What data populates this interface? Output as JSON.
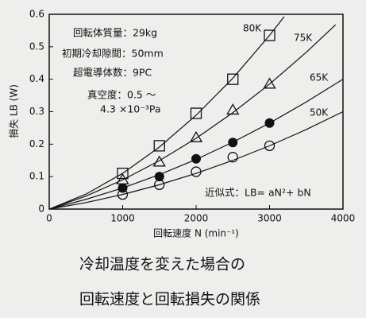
{
  "chart_data": {
    "type": "scatter",
    "x_label": "回転速度 N (min⁻¹)",
    "y_label": "損失 LB (W)",
    "xlim": [
      0,
      4000
    ],
    "xticks": [
      0,
      1000,
      2000,
      3000,
      4000
    ],
    "ylim": [
      0,
      0.6
    ],
    "yticks": [
      0,
      0.1,
      0.2,
      0.3,
      0.4,
      0.5,
      0.6
    ],
    "x": [
      1000,
      1500,
      2000,
      2500,
      3000
    ],
    "series": [
      {
        "name": "80K",
        "marker": "square",
        "color": "#111111",
        "values": [
          0.11,
          0.195,
          0.295,
          0.4,
          0.535
        ],
        "curve_x": [
          0,
          500,
          1000,
          1500,
          2000,
          2500,
          3000,
          3200
        ],
        "curve_values": [
          0,
          0.046,
          0.11,
          0.191,
          0.289,
          0.403,
          0.535,
          0.593
        ]
      },
      {
        "name": "75K",
        "marker": "triangle",
        "color": "#111111",
        "values": [
          0.09,
          0.145,
          0.22,
          0.305,
          0.385
        ],
        "curve_x": [
          0,
          500,
          1000,
          1500,
          2000,
          2500,
          3000,
          3500,
          3900
        ],
        "curve_values": [
          0,
          0.04,
          0.09,
          0.149,
          0.218,
          0.297,
          0.385,
          0.483,
          0.568
        ]
      },
      {
        "name": "65K",
        "marker": "filled-circle",
        "color": "#111111",
        "values": [
          0.065,
          0.1,
          0.155,
          0.205,
          0.265
        ],
        "curve_x": [
          0,
          500,
          1000,
          1500,
          2000,
          2500,
          3000,
          3500,
          4000
        ],
        "curve_values": [
          0,
          0.03,
          0.065,
          0.106,
          0.153,
          0.206,
          0.265,
          0.33,
          0.4
        ]
      },
      {
        "name": "50K",
        "marker": "circle",
        "color": "#111111",
        "values": [
          0.045,
          0.075,
          0.115,
          0.16,
          0.195
        ],
        "curve_x": [
          0,
          500,
          1000,
          1500,
          2000,
          2500,
          3000,
          3500,
          4000
        ],
        "curve_values": [
          0,
          0.02,
          0.045,
          0.075,
          0.11,
          0.15,
          0.195,
          0.245,
          0.3
        ]
      }
    ],
    "annotations": [
      "回転体質量：29kg",
      "初期冷却隙間：50mm",
      "超電導体数：9PC",
      "真空度：0.5 ～",
      "4.3 ×10⁻³Pa",
      "近似式：LB= aN²+ bN"
    ],
    "caption": [
      "冷却温度を変えた場合の",
      "回転速度と回転損失の関係"
    ]
  }
}
